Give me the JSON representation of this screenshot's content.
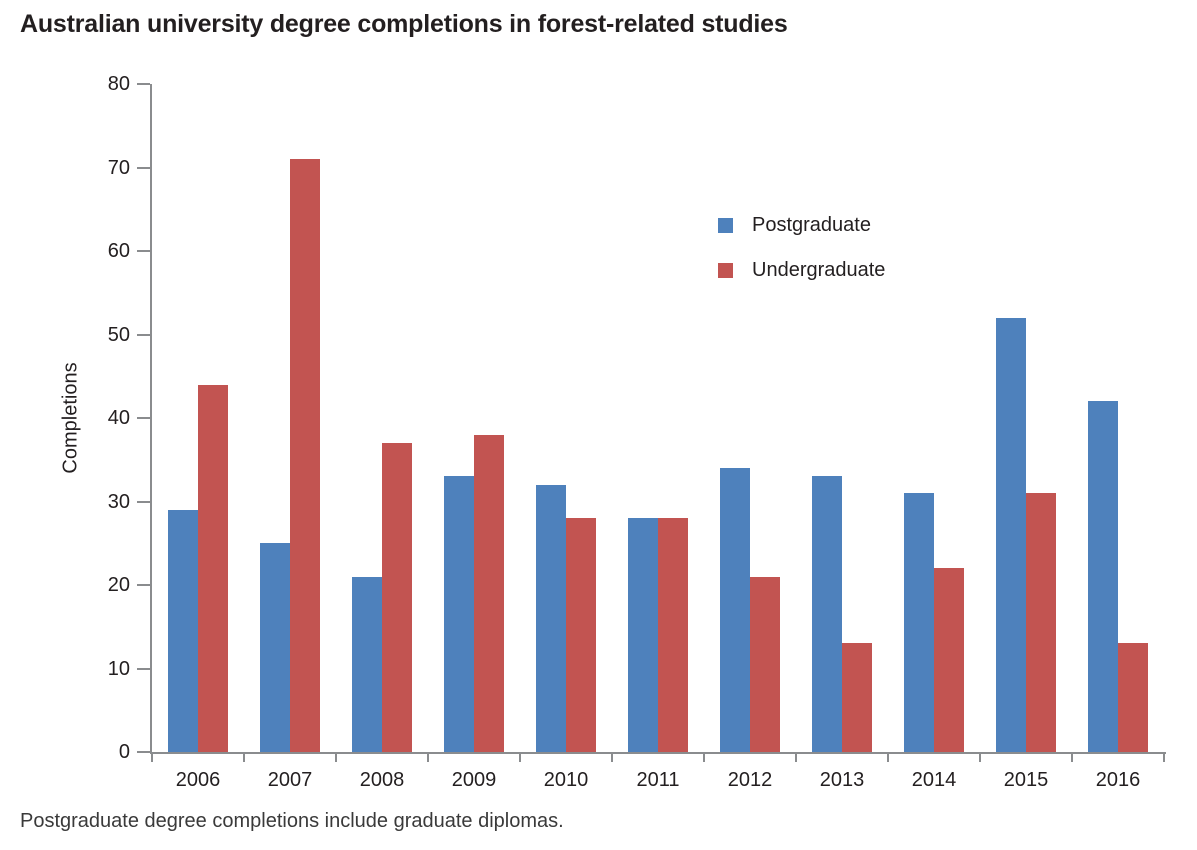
{
  "chart_data": {
    "type": "bar",
    "title": "Australian university degree completions in forest-related studies",
    "categories": [
      "2006",
      "2007",
      "2008",
      "2009",
      "2010",
      "2011",
      "2012",
      "2013",
      "2014",
      "2015",
      "2016"
    ],
    "series": [
      {
        "name": "Postgraduate",
        "color": "#4e81bc",
        "values": [
          29,
          25,
          21,
          33,
          32,
          28,
          34,
          33,
          31,
          52,
          42
        ]
      },
      {
        "name": "Undergraduate",
        "color": "#c25451",
        "values": [
          44,
          71,
          37,
          38,
          28,
          28,
          21,
          13,
          22,
          31,
          13
        ]
      }
    ],
    "xlabel": "",
    "ylabel": "Completions",
    "ylim": [
      0,
      80
    ],
    "yticks": [
      0,
      10,
      20,
      30,
      40,
      50,
      60,
      70,
      80
    ],
    "grid": false,
    "legend_position": "upper center-left inside plot",
    "axis_color": "#8a8c8e",
    "footnote": "Postgraduate degree completions include graduate diplomas."
  }
}
